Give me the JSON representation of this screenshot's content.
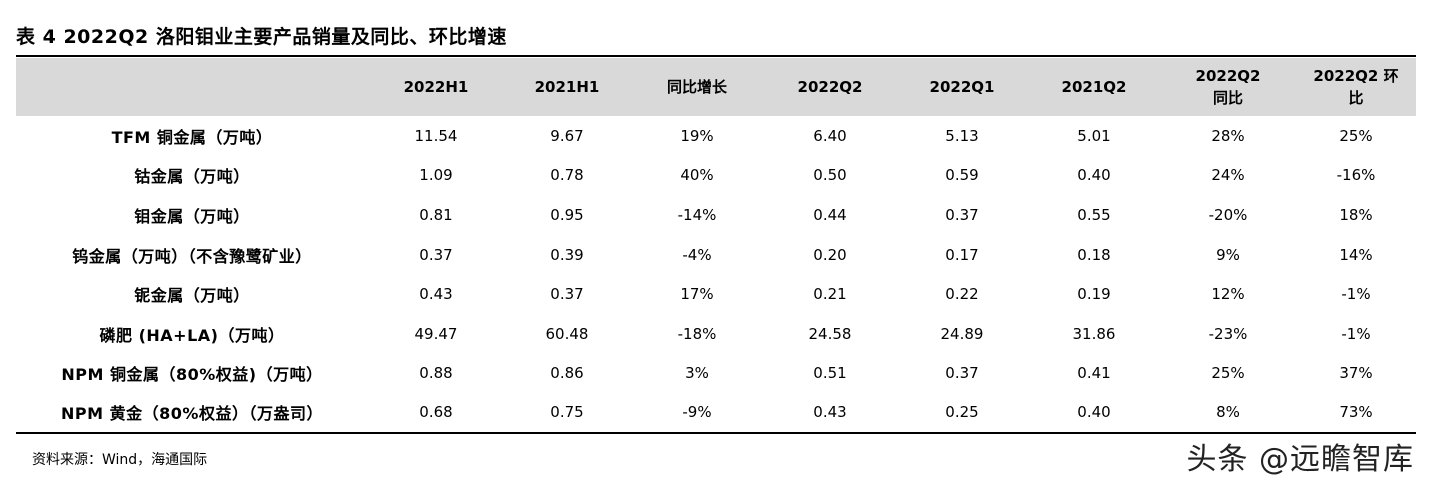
{
  "title": "表 4  2022Q2 洛阳钼业主要产品销量及同比、环比增速",
  "table": {
    "headers": [
      "",
      "2022H1",
      "2021H1",
      "同比增长",
      "2022Q2",
      "2022Q1",
      "2021Q2",
      "2022Q2\n同比",
      "2022Q2 环\n比"
    ],
    "rows": [
      {
        "label": "TFM 铜金属（万吨）",
        "cells": [
          "11.54",
          "9.67",
          "19%",
          "6.40",
          "5.13",
          "5.01",
          "28%",
          "25%"
        ]
      },
      {
        "label": "钴金属（万吨）",
        "cells": [
          "1.09",
          "0.78",
          "40%",
          "0.50",
          "0.59",
          "0.40",
          "24%",
          "-16%"
        ]
      },
      {
        "label": "钼金属（万吨）",
        "cells": [
          "0.81",
          "0.95",
          "-14%",
          "0.44",
          "0.37",
          "0.55",
          "-20%",
          "18%"
        ]
      },
      {
        "label": "钨金属（万吨）（不含豫鹭矿业）",
        "cells": [
          "0.37",
          "0.39",
          "-4%",
          "0.20",
          "0.17",
          "0.18",
          "9%",
          "14%"
        ]
      },
      {
        "label": "铌金属（万吨）",
        "cells": [
          "0.43",
          "0.37",
          "17%",
          "0.21",
          "0.22",
          "0.19",
          "12%",
          "-1%"
        ]
      },
      {
        "label": "磷肥 (HA+LA)（万吨）",
        "cells": [
          "49.47",
          "60.48",
          "-18%",
          "24.58",
          "24.89",
          "31.86",
          "-23%",
          "-1%"
        ]
      },
      {
        "label": "NPM 铜金属（80%权益)（万吨）",
        "cells": [
          "0.88",
          "0.86",
          "3%",
          "0.51",
          "0.37",
          "0.41",
          "25%",
          "37%"
        ]
      },
      {
        "label": "NPM 黄金（80%权益）（万盎司）",
        "cells": [
          "0.68",
          "0.75",
          "-9%",
          "0.43",
          "0.25",
          "0.40",
          "8%",
          "73%"
        ]
      }
    ]
  },
  "source": "资料来源：Wind，海通国际",
  "watermark": "头条 @远瞻智库"
}
